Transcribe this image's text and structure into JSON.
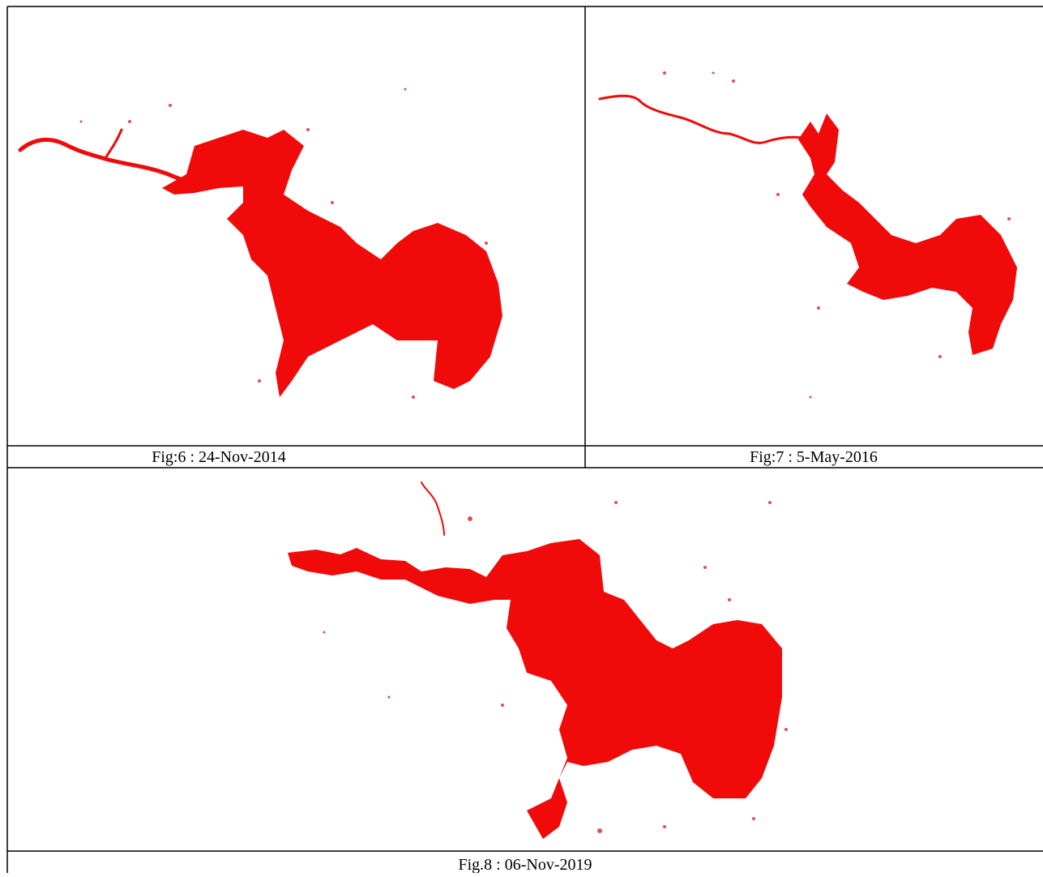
{
  "figures": [
    {
      "caption": "Fig:6 : 24-Nov-2014"
    },
    {
      "caption": "Fig:7 : 5-May-2016"
    },
    {
      "caption": "Fig.8 : 06-Nov-2019"
    }
  ]
}
